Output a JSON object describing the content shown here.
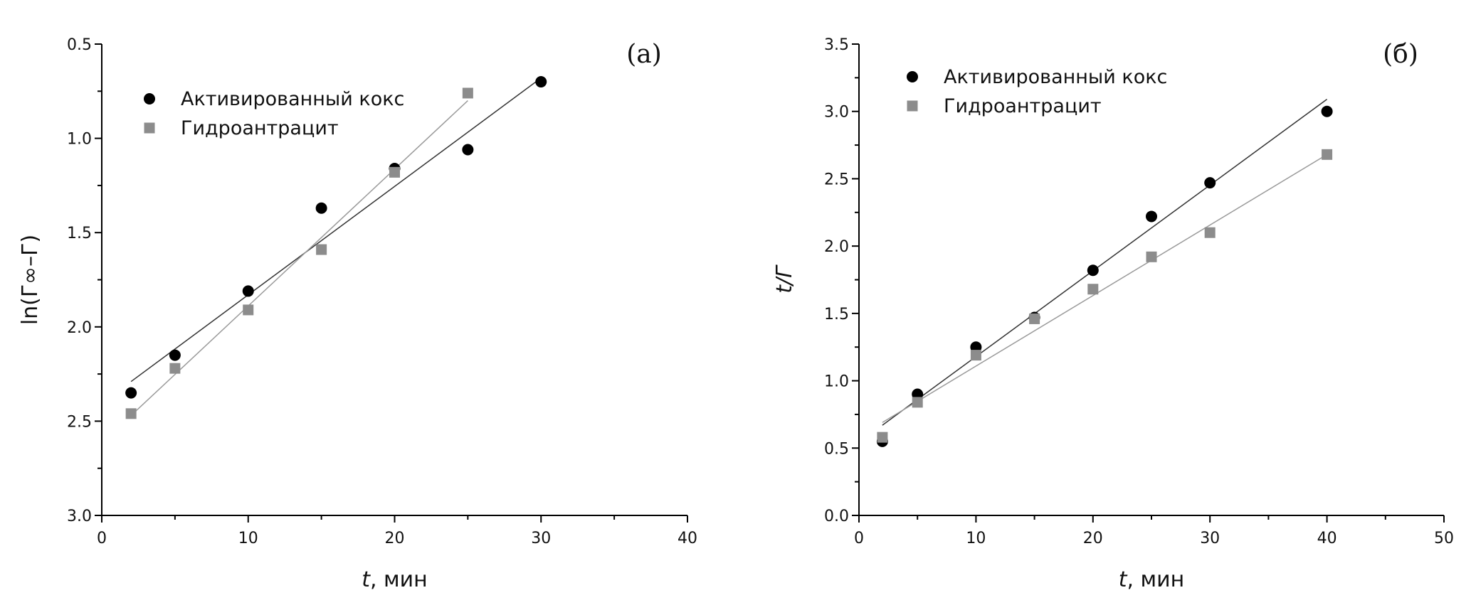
{
  "colors": {
    "series1": "#000000",
    "series2": "#8c8c8c",
    "fit1": "#333333",
    "fit2": "#9a9a9a"
  },
  "chart_data": [
    {
      "type": "scatter",
      "panel_label": "(a)",
      "xlabel_italic": "t",
      "xlabel_rest": ", мин",
      "ylabel": "ln(Г∞–Г)",
      "xlim": [
        0,
        40
      ],
      "ylim": [
        0.5,
        3.0
      ],
      "y_inverted": true,
      "xticks": [
        0,
        10,
        20,
        30,
        40
      ],
      "yticks": [
        "0.5",
        "1.0",
        "1.5",
        "2.0",
        "2.5",
        "3.0"
      ],
      "legend_position": "top-left",
      "series": [
        {
          "name": "Активированный кокс",
          "marker": "circle",
          "x": [
            2,
            5,
            10,
            15,
            20,
            25,
            30
          ],
          "y": [
            2.35,
            2.15,
            1.81,
            1.37,
            1.16,
            1.06,
            0.7
          ],
          "fit": [
            [
              2,
              2.29
            ],
            [
              30,
              0.68
            ]
          ]
        },
        {
          "name": "Гидроантрацит",
          "marker": "square",
          "x": [
            2,
            5,
            10,
            15,
            20,
            25
          ],
          "y": [
            2.46,
            2.22,
            1.91,
            1.59,
            1.18,
            0.76
          ],
          "fit": [
            [
              2,
              2.47
            ],
            [
              25,
              0.8
            ]
          ]
        }
      ]
    },
    {
      "type": "scatter",
      "panel_label": "(б)",
      "xlabel_italic": "t",
      "xlabel_rest": ", мин",
      "ylabel": "t/Г",
      "xlim": [
        0,
        50
      ],
      "ylim": [
        0,
        3.5
      ],
      "y_inverted": false,
      "xticks": [
        0,
        10,
        20,
        30,
        40,
        50
      ],
      "yticks": [
        "0.0",
        "0.5",
        "1.0",
        "1.5",
        "2.0",
        "2.5",
        "3.0",
        "3.5"
      ],
      "legend_position": "top-left",
      "series": [
        {
          "name": "Активированный кокс",
          "marker": "circle",
          "x": [
            2,
            5,
            10,
            15,
            20,
            25,
            30,
            40
          ],
          "y": [
            0.55,
            0.9,
            1.25,
            1.47,
            1.82,
            2.22,
            2.47,
            3.0
          ],
          "fit": [
            [
              2,
              0.67
            ],
            [
              40,
              3.09
            ]
          ]
        },
        {
          "name": "Гидроантрацит",
          "marker": "square",
          "x": [
            2,
            5,
            10,
            15,
            20,
            25,
            30,
            40
          ],
          "y": [
            0.58,
            0.84,
            1.19,
            1.46,
            1.68,
            1.92,
            2.1,
            2.68
          ],
          "fit": [
            [
              2,
              0.69
            ],
            [
              40,
              2.68
            ]
          ]
        }
      ]
    }
  ]
}
